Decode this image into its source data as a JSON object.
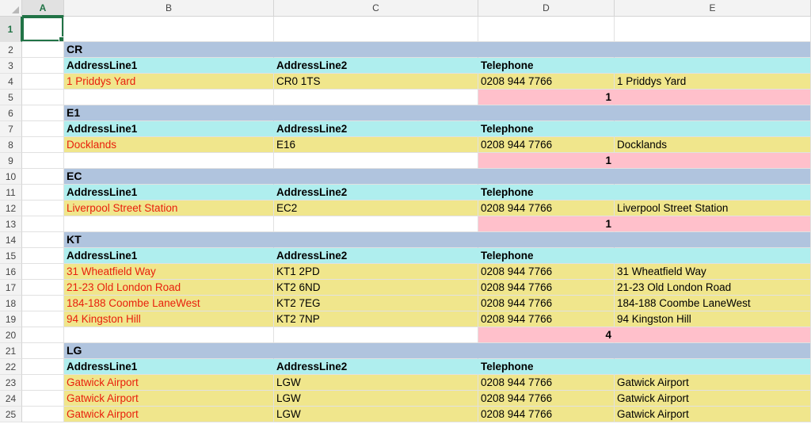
{
  "columns": [
    "A",
    "B",
    "C",
    "D",
    "E"
  ],
  "row1_label": "1",
  "rows": [
    {
      "n": "2",
      "type": "section",
      "label": "CR"
    },
    {
      "n": "3",
      "type": "header",
      "cols": [
        "AddressLine1",
        "AddressLine2",
        "Telephone"
      ]
    },
    {
      "n": "4",
      "type": "data",
      "cols": [
        "1 Priddys Yard",
        "CR0 1TS",
        "0208 944 7766",
        "1 Priddys Yard"
      ]
    },
    {
      "n": "5",
      "type": "count",
      "value": "1"
    },
    {
      "n": "6",
      "type": "section",
      "label": "E1"
    },
    {
      "n": "7",
      "type": "header",
      "cols": [
        "AddressLine1",
        "AddressLine2",
        "Telephone"
      ]
    },
    {
      "n": "8",
      "type": "data",
      "cols": [
        "Docklands",
        "E16",
        "0208 944 7766",
        "Docklands"
      ]
    },
    {
      "n": "9",
      "type": "count",
      "value": "1"
    },
    {
      "n": "10",
      "type": "section",
      "label": "EC"
    },
    {
      "n": "11",
      "type": "header",
      "cols": [
        "AddressLine1",
        "AddressLine2",
        "Telephone"
      ]
    },
    {
      "n": "12",
      "type": "data",
      "cols": [
        "Liverpool Street Station",
        "EC2",
        "0208 944 7766",
        "Liverpool Street Station"
      ]
    },
    {
      "n": "13",
      "type": "count",
      "value": "1"
    },
    {
      "n": "14",
      "type": "section",
      "label": "KT"
    },
    {
      "n": "15",
      "type": "header",
      "cols": [
        "AddressLine1",
        "AddressLine2",
        "Telephone"
      ]
    },
    {
      "n": "16",
      "type": "data",
      "cols": [
        "31 Wheatfield Way",
        "KT1 2PD",
        "0208 944 7766",
        "31 Wheatfield Way"
      ]
    },
    {
      "n": "17",
      "type": "data",
      "cols": [
        "21-23 Old London Road",
        "KT2 6ND",
        "0208 944 7766",
        "21-23 Old London Road"
      ]
    },
    {
      "n": "18",
      "type": "data",
      "cols": [
        "184-188 Coombe LaneWest",
        "KT2 7EG",
        "0208 944 7766",
        "184-188 Coombe LaneWest"
      ]
    },
    {
      "n": "19",
      "type": "data",
      "cols": [
        "94 Kingston Hill",
        "KT2 7NP",
        "0208 944 7766",
        "94 Kingston Hill"
      ]
    },
    {
      "n": "20",
      "type": "count",
      "value": "4"
    },
    {
      "n": "21",
      "type": "section",
      "label": "LG"
    },
    {
      "n": "22",
      "type": "header",
      "cols": [
        "AddressLine1",
        "AddressLine2",
        "Telephone"
      ]
    },
    {
      "n": "23",
      "type": "data",
      "cols": [
        "Gatwick Airport",
        "LGW",
        "0208 944 7766",
        "Gatwick Airport"
      ]
    },
    {
      "n": "24",
      "type": "data",
      "cols": [
        "Gatwick Airport",
        "LGW",
        "0208 944 7766",
        "Gatwick Airport"
      ]
    },
    {
      "n": "25",
      "type": "data",
      "cols": [
        "Gatwick Airport",
        "LGW",
        "0208 944 7766",
        "Gatwick Airport"
      ]
    }
  ],
  "colors": {
    "section_bg": "#b0c4de",
    "header_bg": "#afeeee",
    "data_bg": "#f0e68c",
    "count_bg": "#ffc0cb",
    "address_text": "#e8200c",
    "selection": "#217346"
  }
}
